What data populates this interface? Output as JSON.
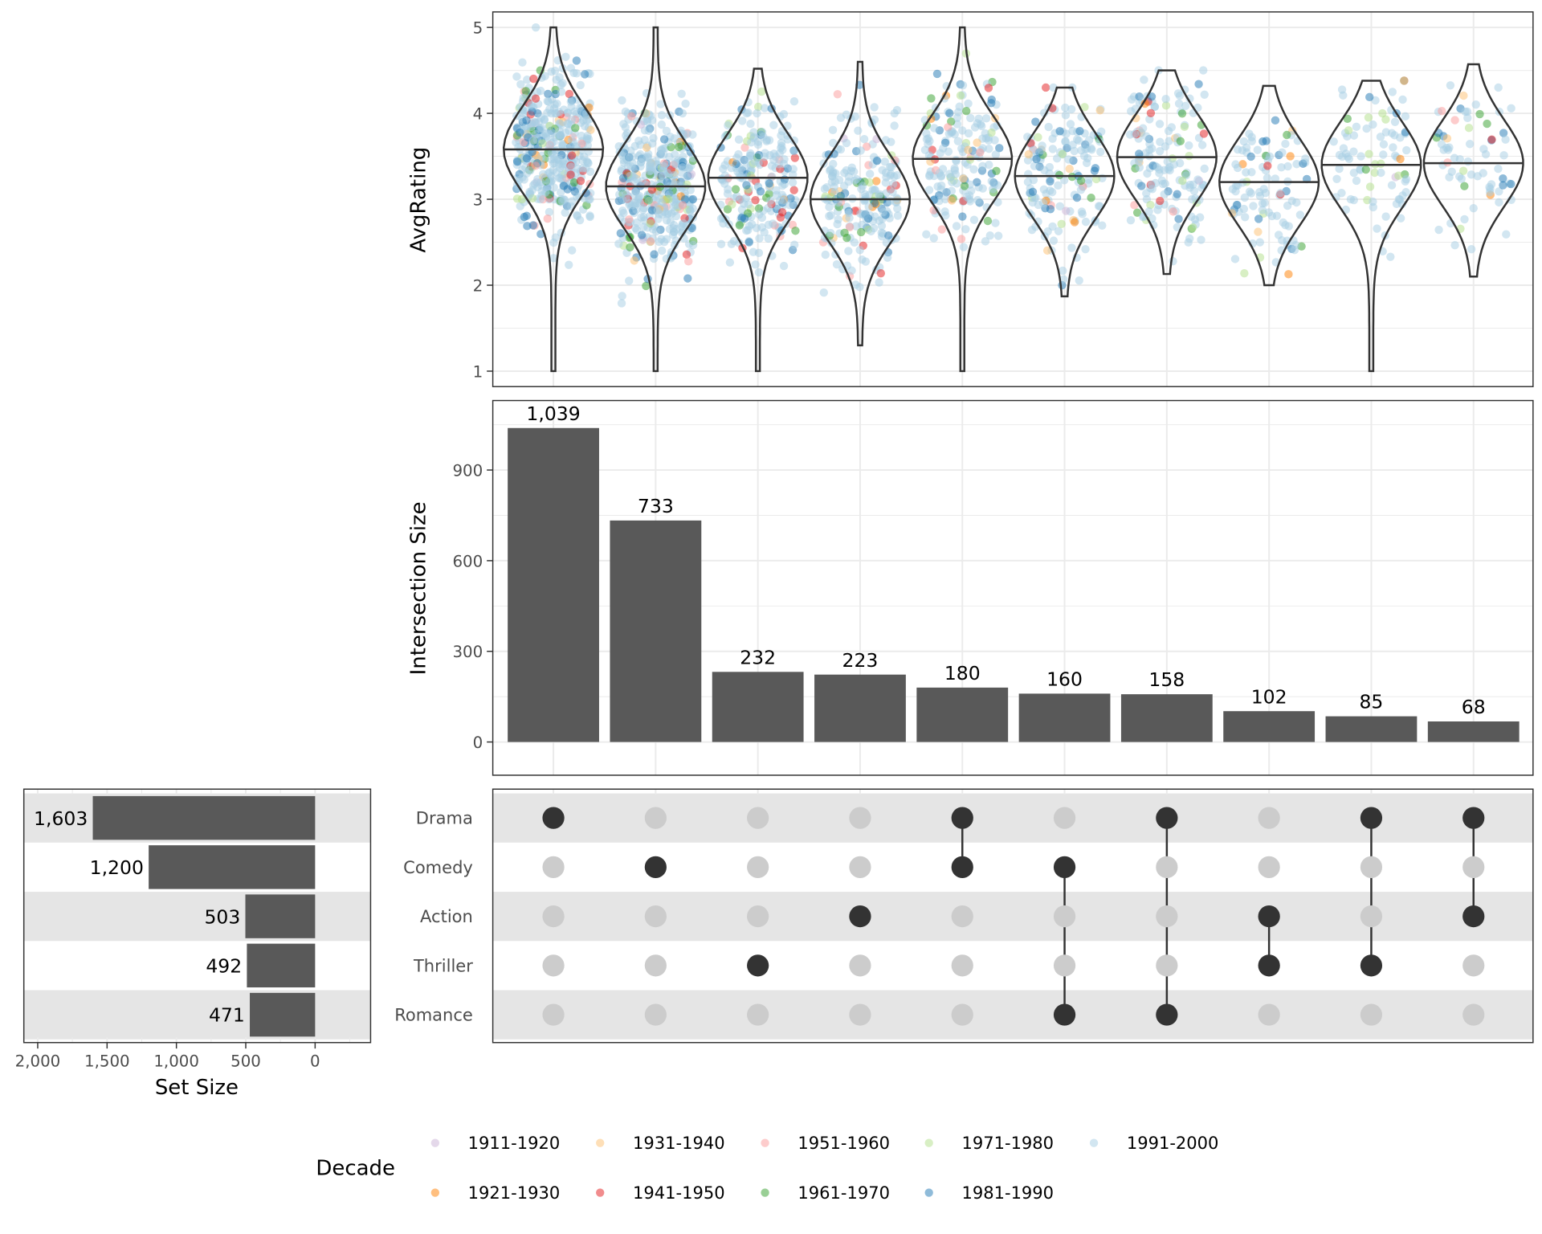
{
  "chart_data": {
    "type": "upset",
    "sets": [
      {
        "name": "Drama",
        "size": 1603,
        "label": "1,603"
      },
      {
        "name": "Comedy",
        "size": 1200,
        "label": "1,200"
      },
      {
        "name": "Action",
        "size": 503,
        "label": "503"
      },
      {
        "name": "Thriller",
        "size": 492,
        "label": "492"
      },
      {
        "name": "Romance",
        "size": 471,
        "label": "471"
      }
    ],
    "intersections": [
      {
        "members": [
          "Drama"
        ],
        "size": 1039,
        "label": "1,039",
        "rating_median": 3.58,
        "rating_range": [
          1.0,
          5.0
        ]
      },
      {
        "members": [
          "Comedy"
        ],
        "size": 733,
        "label": "733",
        "rating_median": 3.15,
        "rating_range": [
          1.0,
          5.0
        ]
      },
      {
        "members": [
          "Thriller"
        ],
        "size": 232,
        "label": "232",
        "rating_median": 3.25,
        "rating_range": [
          1.0,
          4.52
        ]
      },
      {
        "members": [
          "Action"
        ],
        "size": 223,
        "label": "223",
        "rating_median": 3.0,
        "rating_range": [
          1.3,
          4.6
        ]
      },
      {
        "members": [
          "Drama",
          "Comedy"
        ],
        "size": 180,
        "label": "180",
        "rating_median": 3.47,
        "rating_range": [
          1.0,
          5.0
        ]
      },
      {
        "members": [
          "Comedy",
          "Romance"
        ],
        "size": 160,
        "label": "160",
        "rating_median": 3.27,
        "rating_range": [
          1.87,
          4.3
        ]
      },
      {
        "members": [
          "Drama",
          "Romance"
        ],
        "size": 158,
        "label": "158",
        "rating_median": 3.49,
        "rating_range": [
          2.13,
          4.5
        ]
      },
      {
        "members": [
          "Action",
          "Thriller"
        ],
        "size": 102,
        "label": "102",
        "rating_median": 3.2,
        "rating_range": [
          2.0,
          4.32
        ]
      },
      {
        "members": [
          "Drama",
          "Thriller"
        ],
        "size": 85,
        "label": "85",
        "rating_median": 3.4,
        "rating_range": [
          1.0,
          4.38
        ]
      },
      {
        "members": [
          "Drama",
          "Action"
        ],
        "size": 68,
        "label": "68",
        "rating_median": 3.42,
        "rating_range": [
          2.1,
          4.57
        ]
      }
    ],
    "rating_panel": {
      "type": "violin+scatter",
      "ylabel": "AvgRating",
      "ylim": [
        0.82,
        5.18
      ],
      "yticks": [
        "1",
        "2",
        "3",
        "4",
        "5"
      ]
    },
    "intersection_panel": {
      "type": "bar",
      "ylabel": "Intersection Size",
      "ylim": [
        -110,
        1130
      ],
      "yticks": [
        "0",
        "300",
        "600",
        "900"
      ]
    },
    "set_size_panel": {
      "type": "bar",
      "xlabel": "Set Size",
      "xlim_reversed": [
        2100,
        -400
      ],
      "xticks": [
        "2,000",
        "1,500",
        "1,000",
        "500",
        "0"
      ]
    },
    "legend": {
      "title": "Decade",
      "placement": "bottom",
      "items": [
        {
          "label": "1911-1920",
          "color": "#cab2d6"
        },
        {
          "label": "1921-1930",
          "color": "#ff7f00"
        },
        {
          "label": "1931-1940",
          "color": "#fdbf6f"
        },
        {
          "label": "1941-1950",
          "color": "#e31a1c"
        },
        {
          "label": "1951-1960",
          "color": "#fb9a99"
        },
        {
          "label": "1961-1970",
          "color": "#33a02c"
        },
        {
          "label": "1971-1980",
          "color": "#b2df8a"
        },
        {
          "label": "1981-1990",
          "color": "#1f78b4"
        },
        {
          "label": "1991-2000",
          "color": "#a6cee3"
        }
      ]
    },
    "grid": true
  },
  "colors": {
    "bar": "#595959",
    "dot_active": "#333333",
    "dot_inactive": "#cccccc",
    "stripe": "#e5e5e5",
    "grid": "#ebebeb",
    "panel_border": "#333333"
  }
}
